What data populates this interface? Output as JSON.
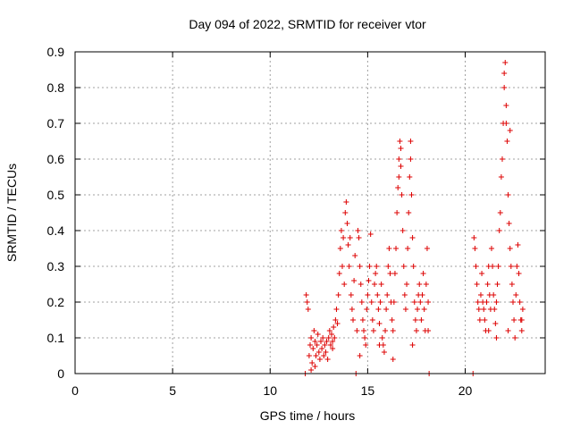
{
  "chart_data": {
    "type": "scatter",
    "title": "Day 094 of 2022, SRMTID for receiver vtor",
    "xlabel": "GPS time / hours",
    "ylabel": "SRMTID / TECUs",
    "xlim": [
      0,
      24.1
    ],
    "ylim": [
      0,
      0.9
    ],
    "x_ticks": [
      0,
      5,
      10,
      15,
      20
    ],
    "y_ticks": [
      0,
      0.1,
      0.2,
      0.3,
      0.4,
      0.5,
      0.6,
      0.7,
      0.8,
      0.9
    ],
    "x_tick_labels": [
      "0",
      "5",
      "10",
      "15",
      "20"
    ],
    "y_tick_labels": [
      "0",
      "0.1",
      "0.2",
      "0.3",
      "0.4",
      "0.5",
      "0.6",
      "0.7",
      "0.8",
      "0.9"
    ],
    "grid": true,
    "marker": "+",
    "color": "#dd0000",
    "series": [
      {
        "name": "SRMTID",
        "points": [
          [
            11.8,
            0.0
          ],
          [
            11.85,
            0.22
          ],
          [
            11.9,
            0.2
          ],
          [
            11.95,
            0.18
          ],
          [
            12.0,
            0.05
          ],
          [
            12.05,
            0.08
          ],
          [
            12.1,
            0.1
          ],
          [
            12.15,
            0.03
          ],
          [
            12.2,
            0.07
          ],
          [
            12.25,
            0.12
          ],
          [
            12.3,
            0.09
          ],
          [
            12.35,
            0.05
          ],
          [
            12.4,
            0.08
          ],
          [
            12.45,
            0.11
          ],
          [
            12.5,
            0.06
          ],
          [
            12.55,
            0.04
          ],
          [
            12.6,
            0.09
          ],
          [
            12.65,
            0.07
          ],
          [
            12.7,
            0.1
          ],
          [
            12.75,
            0.05
          ],
          [
            12.8,
            0.08
          ],
          [
            12.85,
            0.06
          ],
          [
            12.9,
            0.09
          ],
          [
            12.95,
            0.04
          ],
          [
            13.0,
            0.1
          ],
          [
            13.05,
            0.12
          ],
          [
            13.1,
            0.08
          ],
          [
            13.15,
            0.11
          ],
          [
            13.2,
            0.09
          ],
          [
            13.25,
            0.13
          ],
          [
            13.3,
            0.1
          ],
          [
            13.35,
            0.15
          ],
          [
            13.4,
            0.18
          ],
          [
            13.45,
            0.14
          ],
          [
            13.5,
            0.22
          ],
          [
            13.55,
            0.28
          ],
          [
            13.6,
            0.35
          ],
          [
            13.65,
            0.4
          ],
          [
            13.7,
            0.3
          ],
          [
            13.75,
            0.38
          ],
          [
            13.8,
            0.25
          ],
          [
            13.85,
            0.45
          ],
          [
            13.9,
            0.48
          ],
          [
            13.95,
            0.42
          ],
          [
            14.0,
            0.36
          ],
          [
            14.05,
            0.3
          ],
          [
            14.1,
            0.38
          ],
          [
            14.15,
            0.22
          ],
          [
            14.2,
            0.18
          ],
          [
            14.25,
            0.15
          ],
          [
            14.3,
            0.26
          ],
          [
            14.35,
            0.33
          ],
          [
            14.4,
            0.0
          ],
          [
            14.45,
            0.12
          ],
          [
            14.5,
            0.4
          ],
          [
            14.55,
            0.38
          ],
          [
            14.6,
            0.3
          ],
          [
            14.65,
            0.25
          ],
          [
            14.7,
            0.2
          ],
          [
            14.75,
            0.15
          ],
          [
            14.8,
            0.12
          ],
          [
            14.85,
            0.1
          ],
          [
            14.9,
            0.08
          ],
          [
            14.95,
            0.18
          ],
          [
            15.0,
            0.22
          ],
          [
            15.05,
            0.26
          ],
          [
            15.1,
            0.3
          ],
          [
            15.15,
            0.39
          ],
          [
            15.2,
            0.2
          ],
          [
            15.25,
            0.15
          ],
          [
            15.3,
            0.12
          ],
          [
            15.35,
            0.25
          ],
          [
            15.4,
            0.28
          ],
          [
            15.45,
            0.3
          ],
          [
            15.5,
            0.22
          ],
          [
            15.55,
            0.18
          ],
          [
            15.6,
            0.14
          ],
          [
            15.65,
            0.2
          ],
          [
            15.7,
            0.25
          ],
          [
            15.75,
            0.1
          ],
          [
            15.8,
            0.08
          ],
          [
            15.85,
            0.06
          ],
          [
            15.9,
            0.12
          ],
          [
            15.95,
            0.18
          ],
          [
            16.0,
            0.22
          ],
          [
            16.05,
            0.3
          ],
          [
            16.1,
            0.35
          ],
          [
            16.15,
            0.28
          ],
          [
            16.2,
            0.2
          ],
          [
            16.25,
            0.15
          ],
          [
            16.3,
            0.12
          ],
          [
            16.35,
            0.2
          ],
          [
            16.4,
            0.28
          ],
          [
            16.45,
            0.35
          ],
          [
            16.5,
            0.45
          ],
          [
            16.55,
            0.52
          ],
          [
            16.6,
            0.6
          ],
          [
            16.65,
            0.65
          ],
          [
            16.7,
            0.58
          ],
          [
            16.75,
            0.5
          ],
          [
            16.8,
            0.4
          ],
          [
            16.85,
            0.3
          ],
          [
            16.9,
            0.22
          ],
          [
            16.95,
            0.18
          ],
          [
            17.0,
            0.25
          ],
          [
            17.05,
            0.35
          ],
          [
            17.1,
            0.45
          ],
          [
            17.15,
            0.55
          ],
          [
            17.2,
            0.65
          ],
          [
            17.25,
            0.5
          ],
          [
            17.3,
            0.38
          ],
          [
            17.35,
            0.3
          ],
          [
            17.4,
            0.2
          ],
          [
            17.45,
            0.15
          ],
          [
            17.5,
            0.12
          ],
          [
            17.55,
            0.18
          ],
          [
            17.6,
            0.22
          ],
          [
            17.65,
            0.25
          ],
          [
            17.7,
            0.2
          ],
          [
            17.75,
            0.15
          ],
          [
            17.8,
            0.22
          ],
          [
            17.85,
            0.28
          ],
          [
            17.9,
            0.18
          ],
          [
            17.95,
            0.12
          ],
          [
            18.0,
            0.25
          ],
          [
            18.05,
            0.35
          ],
          [
            18.1,
            0.2
          ],
          [
            18.15,
            0.0
          ],
          [
            20.4,
            0.0
          ],
          [
            20.45,
            0.38
          ],
          [
            20.5,
            0.35
          ],
          [
            20.55,
            0.3
          ],
          [
            20.6,
            0.25
          ],
          [
            20.65,
            0.2
          ],
          [
            20.7,
            0.18
          ],
          [
            20.75,
            0.15
          ],
          [
            20.8,
            0.22
          ],
          [
            20.85,
            0.28
          ],
          [
            20.9,
            0.2
          ],
          [
            20.95,
            0.18
          ],
          [
            21.0,
            0.15
          ],
          [
            21.05,
            0.12
          ],
          [
            21.1,
            0.2
          ],
          [
            21.15,
            0.25
          ],
          [
            21.2,
            0.3
          ],
          [
            21.25,
            0.22
          ],
          [
            21.3,
            0.18
          ],
          [
            21.35,
            0.35
          ],
          [
            21.4,
            0.3
          ],
          [
            21.45,
            0.22
          ],
          [
            21.5,
            0.18
          ],
          [
            21.55,
            0.14
          ],
          [
            21.6,
            0.2
          ],
          [
            21.65,
            0.25
          ],
          [
            21.7,
            0.3
          ],
          [
            21.75,
            0.4
          ],
          [
            21.8,
            0.45
          ],
          [
            21.85,
            0.55
          ],
          [
            21.9,
            0.6
          ],
          [
            21.95,
            0.7
          ],
          [
            22.0,
            0.8
          ],
          [
            22.05,
            0.87
          ],
          [
            22.1,
            0.75
          ],
          [
            22.15,
            0.65
          ],
          [
            22.2,
            0.5
          ],
          [
            22.25,
            0.42
          ],
          [
            22.3,
            0.35
          ],
          [
            22.35,
            0.3
          ],
          [
            22.4,
            0.25
          ],
          [
            22.45,
            0.2
          ],
          [
            22.5,
            0.15
          ],
          [
            22.55,
            0.1
          ],
          [
            22.6,
            0.22
          ],
          [
            22.65,
            0.3
          ],
          [
            22.7,
            0.36
          ],
          [
            22.75,
            0.28
          ],
          [
            22.8,
            0.2
          ],
          [
            22.85,
            0.15
          ],
          [
            22.9,
            0.12
          ],
          [
            22.95,
            0.18
          ],
          [
            12.1,
            0.01
          ],
          [
            12.3,
            0.02
          ],
          [
            13.2,
            0.07
          ],
          [
            14.6,
            0.05
          ],
          [
            15.6,
            0.08
          ],
          [
            16.3,
            0.04
          ],
          [
            17.3,
            0.08
          ],
          [
            18.1,
            0.12
          ],
          [
            21.2,
            0.12
          ],
          [
            21.6,
            0.1
          ],
          [
            22.2,
            0.12
          ],
          [
            22.9,
            0.15
          ],
          [
            16.7,
            0.63
          ],
          [
            17.2,
            0.6
          ],
          [
            16.6,
            0.55
          ],
          [
            22.1,
            0.7
          ],
          [
            22.0,
            0.84
          ],
          [
            22.3,
            0.68
          ]
        ]
      }
    ]
  }
}
